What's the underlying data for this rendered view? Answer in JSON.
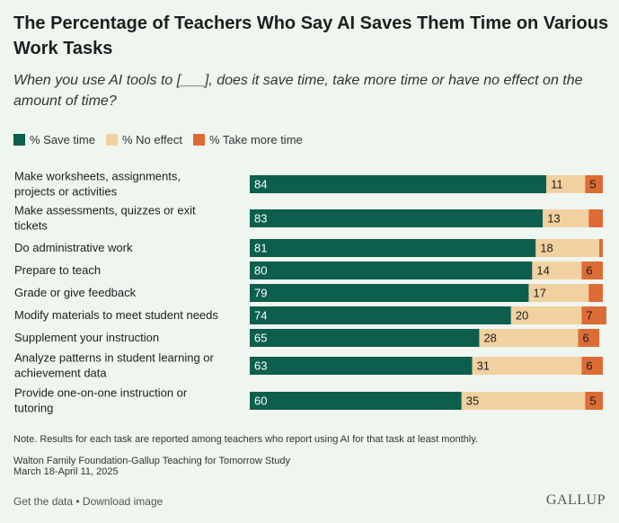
{
  "title": "The Percentage of Teachers Who Say AI Saves Them Time on Various Work Tasks",
  "subtitle": "When you use AI tools to [___], does it save time, take more time or have no effect on the amount of time?",
  "colors": {
    "save": "#0d5e4c",
    "no_effect": "#f2d1a0",
    "more": "#dd6b35"
  },
  "chart_data": {
    "type": "bar",
    "orientation": "horizontal",
    "stacked": true,
    "legend": {
      "position": "top-left"
    },
    "xlim": [
      0,
      100
    ],
    "categories": [
      "Make worksheets, assignments, projects or activities",
      "Make assessments, quizzes or exit tickets",
      "Do administrative work",
      "Prepare to teach",
      "Grade or give feedback",
      "Modify materials to meet student needs",
      "Supplement your instruction",
      "Analyze patterns in student learning or achievement data",
      "Provide one-on-one instruction or tutoring"
    ],
    "category_lines": [
      [
        "Make worksheets, assignments,",
        "projects or activities"
      ],
      [
        "Make assessments, quizzes or exit",
        "tickets"
      ],
      [
        "Do administrative work"
      ],
      [
        "Prepare to teach"
      ],
      [
        "Grade or give feedback"
      ],
      [
        "Modify materials to meet student needs"
      ],
      [
        "Supplement your instruction"
      ],
      [
        "Analyze patterns in student learning or",
        "achievement data"
      ],
      [
        "Provide one-on-one instruction or",
        "tutoring"
      ]
    ],
    "series": [
      {
        "name": "% Save time",
        "values": [
          84,
          83,
          81,
          80,
          79,
          74,
          65,
          63,
          60
        ]
      },
      {
        "name": "% No effect",
        "values": [
          11,
          13,
          18,
          14,
          17,
          20,
          28,
          31,
          35
        ]
      },
      {
        "name": "% Take more time",
        "values": [
          5,
          4,
          1,
          6,
          4,
          7,
          6,
          6,
          5
        ]
      }
    ],
    "labels": [
      [
        "84",
        "11",
        "5"
      ],
      [
        "83",
        "13",
        ""
      ],
      [
        "81",
        "18",
        ""
      ],
      [
        "80",
        "14",
        "6"
      ],
      [
        "79",
        "17",
        ""
      ],
      [
        "74",
        "20",
        "7"
      ],
      [
        "65",
        "28",
        "6"
      ],
      [
        "63",
        "31",
        "6"
      ],
      [
        "60",
        "35",
        "5"
      ]
    ]
  },
  "note": "Note. Results for each task are reported among teachers who report using AI for that task at least monthly.",
  "source_line1": "Walton Family Foundation-Gallup Teaching for Tomorrow Study",
  "source_line2": "March 18-April 11, 2025",
  "footer": {
    "get_data": "Get the data",
    "separator": " • ",
    "download": "Download image"
  },
  "logo": "GALLUP"
}
